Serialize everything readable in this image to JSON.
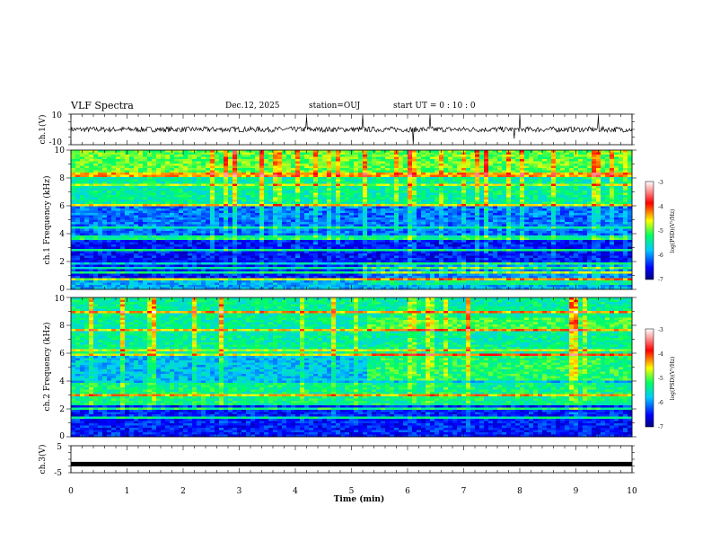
{
  "header": {
    "title": "VLF Spectra",
    "date": "Dec.12, 2025",
    "station": "station=OUJ",
    "start": "start  UT =   0 : 10 : 0"
  },
  "chart_data": [
    {
      "type": "line",
      "name": "ch1-waveform",
      "ylabel": "ch.1(V)",
      "ylim": [
        -10,
        10
      ],
      "yticks": [
        "10",
        "-10"
      ],
      "baseline": 0,
      "spike_times_min": [
        4.2,
        5.2,
        6.1,
        6.4,
        7.9,
        8.0,
        9.4
      ]
    },
    {
      "type": "heatmap",
      "name": "ch1-spectrogram",
      "ylabel": "ch.1 Frequency (kHz)",
      "ylim": [
        0,
        10
      ],
      "yticks": [
        "0",
        "2",
        "4",
        "6",
        "8",
        "10"
      ],
      "colorbar": {
        "label": "log(PSD)(V²/Hz)",
        "range": [
          -7,
          -3
        ],
        "ticks": [
          "-3",
          "-4",
          "-5",
          "-6",
          "-7"
        ]
      }
    },
    {
      "type": "heatmap",
      "name": "ch2-spectrogram",
      "ylabel": "ch.2 Frequency (kHz)",
      "ylim": [
        0,
        10
      ],
      "yticks": [
        "0",
        "2",
        "4",
        "6",
        "8",
        "10"
      ],
      "colorbar": {
        "label": "log(PSD)(V²/Hz)",
        "range": [
          -7,
          -3
        ],
        "ticks": [
          "-3",
          "-4",
          "-5",
          "-6",
          "-7"
        ]
      }
    },
    {
      "type": "line",
      "name": "ch3-waveform",
      "ylabel": "ch.3(V)",
      "ylim": [
        -5,
        5
      ],
      "yticks": [
        "5",
        "-5"
      ],
      "baseline": -1.8
    }
  ],
  "xaxis": {
    "label": "Time  (min)",
    "range": [
      0,
      10
    ],
    "ticks": [
      "0",
      "1",
      "2",
      "3",
      "4",
      "5",
      "6",
      "7",
      "8",
      "9",
      "10"
    ]
  }
}
